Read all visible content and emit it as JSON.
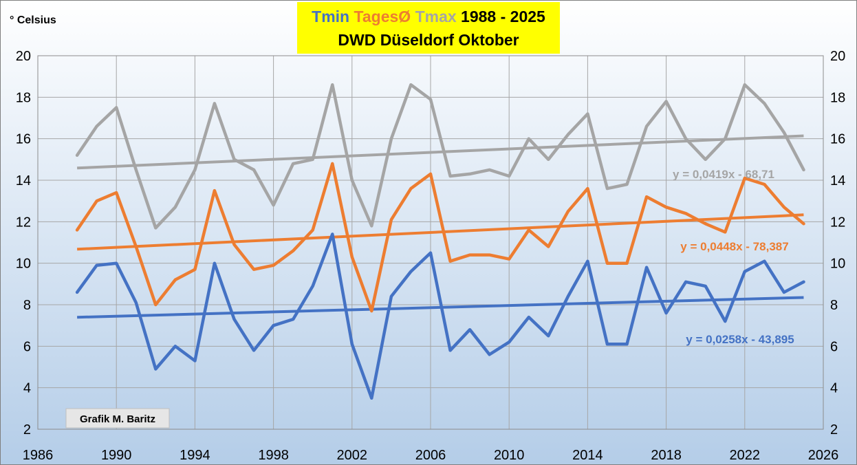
{
  "chart_data": {
    "type": "line",
    "title": {
      "part_tmin": "Tmin ",
      "part_tages": "TagesØ ",
      "part_tmax": "Tmax ",
      "part_years": "1988 - 2025",
      "line2": "DWD Düseldorf Oktober"
    },
    "ylabel": "° Celsius",
    "credit": "Grafik M. Baritz",
    "xlim": [
      1986,
      2026
    ],
    "ylim": [
      2,
      20
    ],
    "x_ticks": [
      1986,
      1990,
      1994,
      1998,
      2002,
      2006,
      2010,
      2014,
      2018,
      2022,
      2026
    ],
    "y_ticks": [
      2,
      4,
      6,
      8,
      10,
      12,
      14,
      16,
      18,
      20
    ],
    "grid": true,
    "x": [
      1988,
      1989,
      1990,
      1991,
      1992,
      1993,
      1994,
      1995,
      1996,
      1997,
      1998,
      1999,
      2000,
      2001,
      2002,
      2003,
      2004,
      2005,
      2006,
      2007,
      2008,
      2009,
      2010,
      2011,
      2012,
      2013,
      2014,
      2015,
      2016,
      2017,
      2018,
      2019,
      2020,
      2021,
      2022,
      2023,
      2024,
      2025
    ],
    "series": [
      {
        "key": "tmax",
        "name": "Tmax",
        "color": "#a5a5a5",
        "values": [
          15.2,
          16.6,
          17.5,
          14.5,
          11.7,
          12.7,
          14.5,
          17.7,
          15.0,
          14.5,
          12.8,
          14.8,
          15.0,
          18.6,
          14.0,
          11.8,
          16.0,
          18.6,
          17.9,
          14.2,
          14.3,
          14.5,
          14.2,
          16.0,
          15.0,
          16.2,
          17.2,
          13.6,
          13.8,
          16.6,
          17.8,
          16.0,
          15.0,
          16.0,
          18.6,
          17.7,
          16.3,
          14.5
        ],
        "trend": {
          "slope": 0.0419,
          "intercept": -68.71,
          "label": "y = 0,0419x - 68,71"
        }
      },
      {
        "key": "tmean",
        "name": "TagesØ",
        "color": "#ed7d31",
        "values": [
          11.6,
          13.0,
          13.4,
          10.8,
          8.0,
          9.2,
          9.7,
          13.5,
          10.9,
          9.7,
          9.9,
          10.6,
          11.6,
          14.8,
          10.3,
          7.7,
          12.1,
          13.6,
          14.3,
          10.1,
          10.4,
          10.4,
          10.2,
          11.6,
          10.8,
          12.5,
          13.6,
          10.0,
          10.0,
          13.2,
          12.7,
          12.4,
          11.9,
          11.5,
          14.1,
          13.8,
          12.7,
          11.9
        ],
        "trend": {
          "slope": 0.0448,
          "intercept": -78.387,
          "label": "y = 0,0448x - 78,387"
        }
      },
      {
        "key": "tmin",
        "name": "Tmin",
        "color": "#4472c4",
        "values": [
          8.6,
          9.9,
          10.0,
          8.1,
          4.9,
          6.0,
          5.3,
          10.0,
          7.3,
          5.8,
          7.0,
          7.3,
          8.9,
          11.4,
          6.1,
          3.5,
          8.4,
          9.6,
          10.5,
          5.8,
          6.8,
          5.6,
          6.2,
          7.4,
          6.5,
          8.4,
          10.1,
          6.1,
          6.1,
          9.8,
          7.6,
          9.1,
          8.9,
          7.2,
          9.6,
          10.1,
          8.6,
          9.1
        ],
        "trend": {
          "slope": 0.0258,
          "intercept": -43.895,
          "label": "y = 0,0258x - 43,895"
        }
      }
    ],
    "colors": {
      "title_bg": "#ffff00",
      "tmin": "#4472c4",
      "tmean": "#ed7d31",
      "tmax": "#a5a5a5",
      "title_years": "#000000"
    }
  }
}
